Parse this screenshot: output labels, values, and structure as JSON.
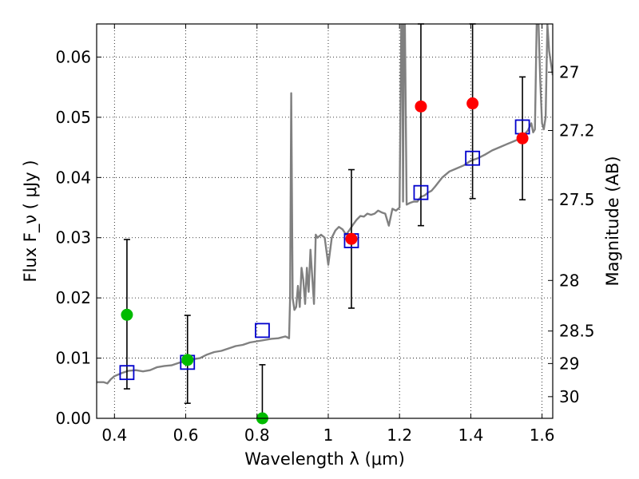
{
  "chart_data": {
    "type": "scatter",
    "xlabel": "Wavelength  λ (μm)",
    "ylabel": "Flux  F_ν  ( μJy )",
    "ylabel_right": "Magnitude (AB)",
    "xlim": [
      0.35,
      1.63
    ],
    "ylim": [
      0.0,
      0.0655
    ],
    "grid": true,
    "x_ticks": [
      0.4,
      0.6,
      0.8,
      1.0,
      1.2,
      1.4,
      1.6
    ],
    "x_tick_labels": [
      "0.4",
      "0.6",
      "0.8",
      "1",
      "1.2",
      "1.4",
      "1.6"
    ],
    "y_ticks": [
      0.0,
      0.01,
      0.02,
      0.03,
      0.04,
      0.05,
      0.06
    ],
    "y_tick_labels": [
      "0.00",
      "0.01",
      "0.02",
      "0.03",
      "0.04",
      "0.05",
      "0.06"
    ],
    "right_ticks": [
      {
        "flux": 0.0575,
        "label": "27"
      },
      {
        "flux": 0.0478,
        "label": "27.2"
      },
      {
        "flux": 0.0363,
        "label": "27.5"
      },
      {
        "flux": 0.0229,
        "label": "28"
      },
      {
        "flux": 0.0145,
        "label": "28.5"
      },
      {
        "flux": 0.0091,
        "label": "29"
      },
      {
        "flux": 0.0036,
        "label": "30"
      }
    ],
    "series": [
      {
        "kind": "model_spectrum",
        "color": "#808080",
        "x": [
          0.35,
          0.37,
          0.38,
          0.39,
          0.4,
          0.42,
          0.44,
          0.46,
          0.48,
          0.5,
          0.52,
          0.54,
          0.56,
          0.58,
          0.6,
          0.62,
          0.64,
          0.66,
          0.68,
          0.7,
          0.72,
          0.74,
          0.76,
          0.78,
          0.8,
          0.82,
          0.84,
          0.86,
          0.88,
          0.89,
          0.893,
          0.896,
          0.9,
          0.905,
          0.91,
          0.915,
          0.92,
          0.925,
          0.93,
          0.935,
          0.94,
          0.945,
          0.95,
          0.955,
          0.96,
          0.965,
          0.97,
          0.98,
          0.99,
          1.0,
          1.01,
          1.02,
          1.03,
          1.04,
          1.05,
          1.06,
          1.07,
          1.08,
          1.09,
          1.1,
          1.11,
          1.12,
          1.13,
          1.14,
          1.15,
          1.16,
          1.17,
          1.18,
          1.19,
          1.2,
          1.205,
          1.208,
          1.21,
          1.212,
          1.215,
          1.22,
          1.23,
          1.24,
          1.25,
          1.26,
          1.27,
          1.28,
          1.29,
          1.3,
          1.32,
          1.34,
          1.36,
          1.38,
          1.4,
          1.42,
          1.44,
          1.46,
          1.48,
          1.5,
          1.52,
          1.54,
          1.56,
          1.57,
          1.575,
          1.58,
          1.585,
          1.59,
          1.595,
          1.6,
          1.605,
          1.61,
          1.615,
          1.62,
          1.63
        ],
        "y": [
          0.006,
          0.006,
          0.0058,
          0.0065,
          0.007,
          0.0075,
          0.0079,
          0.008,
          0.0078,
          0.008,
          0.0085,
          0.0087,
          0.0088,
          0.0092,
          0.0095,
          0.0098,
          0.01,
          0.0106,
          0.011,
          0.0112,
          0.0116,
          0.012,
          0.0122,
          0.0126,
          0.0128,
          0.013,
          0.0132,
          0.0133,
          0.0136,
          0.0133,
          0.02,
          0.054,
          0.02,
          0.018,
          0.0185,
          0.022,
          0.0185,
          0.025,
          0.023,
          0.019,
          0.025,
          0.021,
          0.028,
          0.0235,
          0.019,
          0.0305,
          0.03,
          0.0305,
          0.03,
          0.0255,
          0.03,
          0.0312,
          0.0318,
          0.0314,
          0.0305,
          0.0313,
          0.0322,
          0.033,
          0.0336,
          0.0335,
          0.034,
          0.0338,
          0.034,
          0.0345,
          0.0342,
          0.034,
          0.032,
          0.0348,
          0.0345,
          0.035,
          0.0655,
          0.0655,
          0.036,
          0.0655,
          0.0655,
          0.0355,
          0.0358,
          0.036,
          0.036,
          0.0368,
          0.037,
          0.0375,
          0.0378,
          0.0385,
          0.04,
          0.041,
          0.0415,
          0.042,
          0.0428,
          0.0432,
          0.0438,
          0.0445,
          0.045,
          0.0455,
          0.046,
          0.0465,
          0.0478,
          0.049,
          0.0475,
          0.048,
          0.0655,
          0.0655,
          0.056,
          0.049,
          0.048,
          0.05,
          0.0655,
          0.061,
          0.057
        ]
      },
      {
        "kind": "model_photometry",
        "marker": "square",
        "color": "#0000cc",
        "x": [
          0.435,
          0.605,
          0.815,
          1.065,
          1.26,
          1.405,
          1.545
        ],
        "y": [
          0.0076,
          0.0093,
          0.0146,
          0.0295,
          0.0375,
          0.0432,
          0.0484
        ]
      },
      {
        "kind": "observed_low_snr",
        "marker": "circle",
        "color": "#00bb00",
        "x": [
          0.435,
          0.605,
          0.815
        ],
        "y": [
          0.0172,
          0.0097,
          0.0
        ],
        "yerr_low": [
          0.0123,
          0.0072,
          0.0
        ],
        "yerr_high": [
          0.0125,
          0.0074,
          0.0089
        ]
      },
      {
        "kind": "observed",
        "marker": "circle",
        "color": "#ff0000",
        "x": [
          1.065,
          1.26,
          1.405,
          1.545
        ],
        "y": [
          0.0298,
          0.0518,
          0.0523,
          0.0465
        ],
        "yerr_low": [
          0.0115,
          0.0198,
          0.0158,
          0.0102
        ],
        "yerr_high": [
          0.0115,
          0.0137,
          0.0132,
          0.0102
        ]
      }
    ]
  }
}
